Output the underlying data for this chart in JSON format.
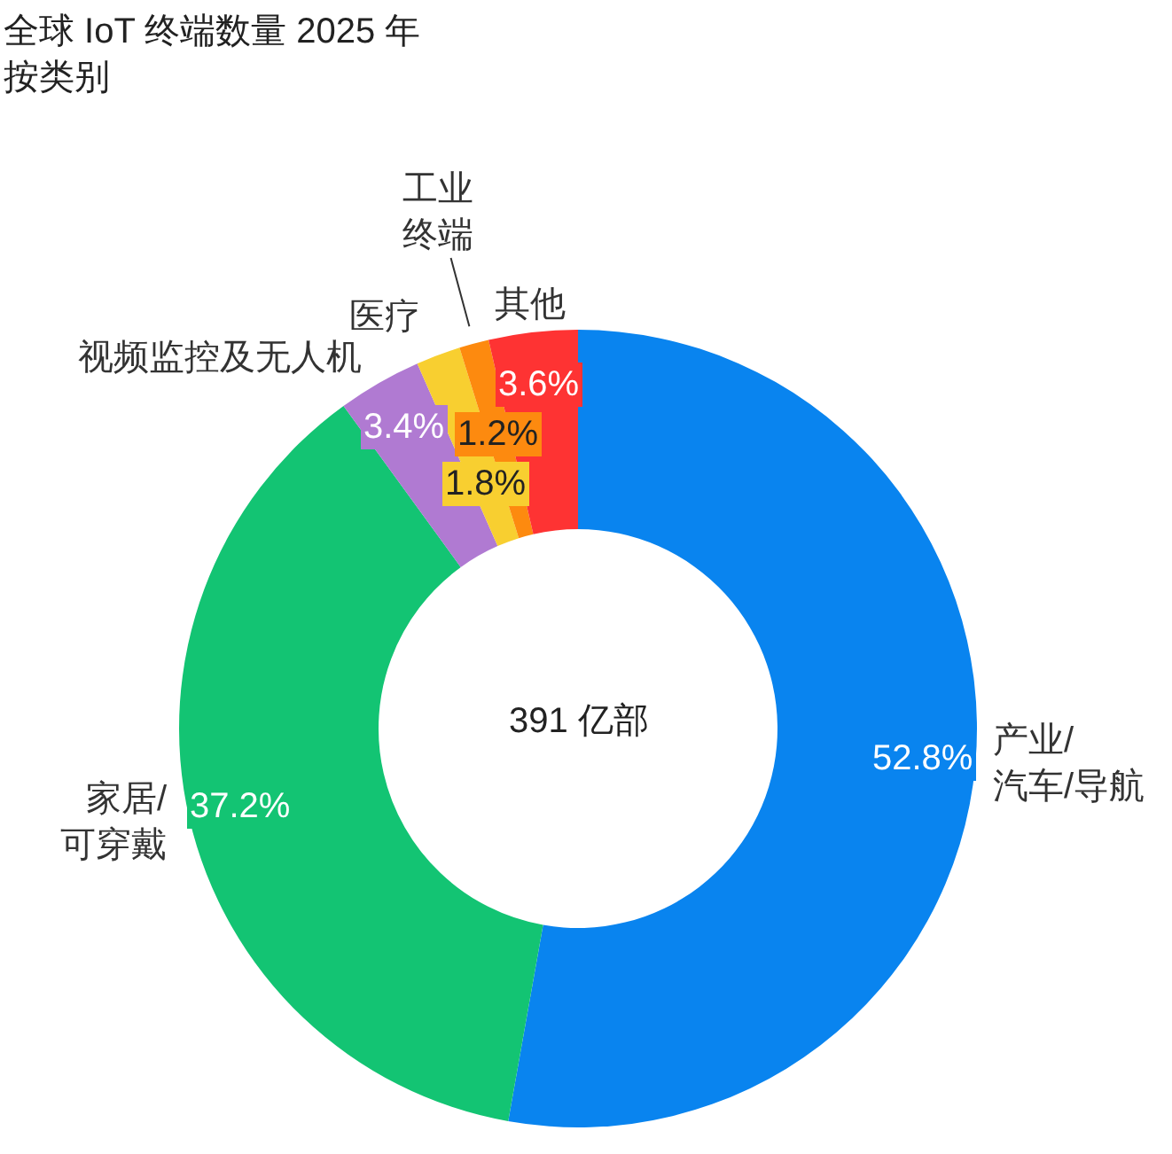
{
  "chart_data": {
    "type": "donut",
    "title": "全球 IoT 终端数量 2025 年按类别",
    "categories": [
      "产业/汽车/导航",
      "家居/可穿戴",
      "视频监控及无人机",
      "医疗",
      "工业终端",
      "其他"
    ],
    "values": [
      52.8,
      37.2,
      3.4,
      1.8,
      1.2,
      3.6
    ],
    "colors": [
      "#0984ef",
      "#13c473",
      "#b07ad2",
      "#f8cf30",
      "#fd8a0f",
      "#fe3333"
    ],
    "value_labels": [
      "52.8%",
      "37.2%",
      "3.4%",
      "1.8%",
      "1.2%",
      "3.6%"
    ],
    "annotations": [
      "391 亿部"
    ]
  }
}
